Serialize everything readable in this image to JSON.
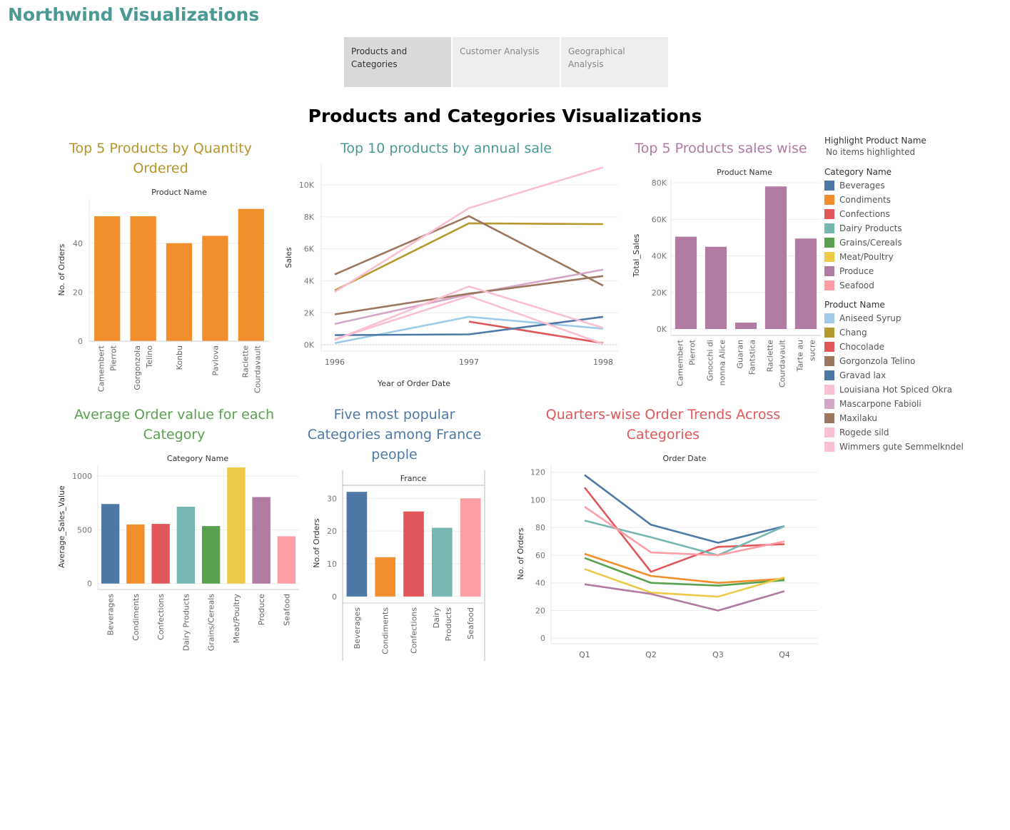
{
  "app_title": "Northwind Visualizations",
  "tabs": [
    {
      "label": "Products and Categories"
    },
    {
      "label": "Customer Analysis"
    },
    {
      "label": "Geographical Analysis"
    }
  ],
  "page_title": "Products and Categories Visualizations",
  "legend": {
    "highlight_title": "Highlight Product Name",
    "highlight_value": "No items highlighted",
    "category_title": "Category Name",
    "categories": [
      {
        "name": "Beverages",
        "color": "#4e79a7"
      },
      {
        "name": "Condiments",
        "color": "#f28e2b"
      },
      {
        "name": "Confections",
        "color": "#e15759"
      },
      {
        "name": "Dairy Products",
        "color": "#76b7b2"
      },
      {
        "name": "Grains/Cereals",
        "color": "#59a14f"
      },
      {
        "name": "Meat/Poultry",
        "color": "#edc948"
      },
      {
        "name": "Produce",
        "color": "#b07aa1"
      },
      {
        "name": "Seafood",
        "color": "#ff9da7"
      }
    ],
    "product_title": "Product Name",
    "products": [
      {
        "name": "Aniseed Syrup",
        "color": "#a0cbe8"
      },
      {
        "name": "Chang",
        "color": "#b6992d"
      },
      {
        "name": "Chocolade",
        "color": "#e15759"
      },
      {
        "name": "Gorgonzola Telino",
        "color": "#9d7660"
      },
      {
        "name": "Gravad lax",
        "color": "#4e79a7"
      },
      {
        "name": "Louisiana Hot Spiced Okra",
        "color": "#fabfd2"
      },
      {
        "name": "Mascarpone Fabioli",
        "color": "#d4a6c8"
      },
      {
        "name": "Maxilaku",
        "color": "#9d7660"
      },
      {
        "name": "Rogede sild",
        "color": "#fabfd2"
      },
      {
        "name": "Wimmers gute Semmelkndel",
        "color": "#fabfd2"
      }
    ]
  },
  "chart_data": [
    {
      "id": "qty",
      "type": "bar",
      "title": "Top 5 Products by Quantity Ordered",
      "title_color": "#b5952b",
      "header": "Product Name",
      "ylabel": "No. of Orders",
      "categories": [
        [
          "Camembert",
          "Pierrot"
        ],
        [
          "Gorgonzola",
          "Telino"
        ],
        [
          "Konbu"
        ],
        [
          "Pavlova"
        ],
        [
          "Raclette",
          "Courdavault"
        ]
      ],
      "values": [
        51,
        51,
        40,
        43,
        54
      ],
      "colors": [
        "#f28e2b",
        "#f28e2b",
        "#f28e2b",
        "#f28e2b",
        "#f28e2b"
      ],
      "ylim": [
        0,
        58
      ],
      "yticks": [
        {
          "v": 0,
          "l": "0"
        },
        {
          "v": 20,
          "l": "20"
        },
        {
          "v": 40,
          "l": "40"
        }
      ]
    },
    {
      "id": "annual",
      "type": "line",
      "title": "Top 10 products by annual sale",
      "title_color": "#4a9a94",
      "xlabel": "Year of Order Date",
      "ylabel": "Sales",
      "x": [
        "1996",
        "1997",
        "1998"
      ],
      "ylim": [
        -400,
        11300
      ],
      "yticks": [
        {
          "v": 0,
          "l": "0K"
        },
        {
          "v": 2000,
          "l": "2K"
        },
        {
          "v": 4000,
          "l": "4K"
        },
        {
          "v": 6000,
          "l": "6K"
        },
        {
          "v": 8000,
          "l": "8K"
        },
        {
          "v": 10000,
          "l": "10K"
        }
      ],
      "series": [
        {
          "name": "Aniseed Syrup",
          "color": "#a0cbe8",
          "values": [
            100,
            1750,
            1000
          ]
        },
        {
          "name": "Chang",
          "color": "#b6992d",
          "values": [
            3400,
            7600,
            7550
          ]
        },
        {
          "name": "Chocolade",
          "color": "#e15759",
          "values": [
            null,
            1450,
            100
          ]
        },
        {
          "name": "Gorgonzola Telino",
          "color": "#9d7660",
          "values": [
            4400,
            8050,
            3700
          ]
        },
        {
          "name": "Gravad lax",
          "color": "#4e79a7",
          "values": [
            600,
            650,
            1750
          ]
        },
        {
          "name": "Louisiana Hot Spiced Okra",
          "color": "#fabfd2",
          "values": [
            3300,
            8550,
            11100
          ]
        },
        {
          "name": "Mascarpone Fabioli",
          "color": "#d4a6c8",
          "values": [
            1300,
            3150,
            4700
          ]
        },
        {
          "name": "Maxilaku",
          "color": "#9d7660",
          "values": [
            1900,
            3200,
            4300
          ]
        },
        {
          "name": "Rogede sild",
          "color": "#fabfd2",
          "values": [
            300,
            3650,
            1050
          ]
        },
        {
          "name": "Wimmers gute Semmelkndel",
          "color": "#fabfd2",
          "values": [
            350,
            3050,
            50
          ]
        }
      ]
    },
    {
      "id": "sales",
      "type": "bar",
      "title": "Top 5 Products sales wise",
      "title_color": "#b07aa1",
      "header": "Product Name",
      "ylabel": "Total_Sales",
      "categories": [
        [
          "Camembert",
          "Pierrot"
        ],
        [
          "Gnocchi di",
          "nonna Alice"
        ],
        [
          "Guaran",
          "Fantstica"
        ],
        [
          "Raclette",
          "Courdavault"
        ],
        [
          "Tarte au",
          "sucre"
        ]
      ],
      "values": [
        50500,
        45000,
        3500,
        78000,
        49500
      ],
      "colors": [
        "#b07aa1",
        "#b07aa1",
        "#b07aa1",
        "#b07aa1",
        "#b07aa1"
      ],
      "ylim": [
        -3500,
        82000
      ],
      "yticks": [
        {
          "v": 0,
          "l": "0K"
        },
        {
          "v": 20000,
          "l": "20K"
        },
        {
          "v": 40000,
          "l": "40K"
        },
        {
          "v": 60000,
          "l": "60K"
        },
        {
          "v": 80000,
          "l": "80K"
        }
      ]
    },
    {
      "id": "avg",
      "type": "bar",
      "title": "Average Order value for each Category",
      "title_color": "#59a14f",
      "header": "Category Name",
      "ylabel": "Average_Sales_Value",
      "categories": [
        [
          "Beverages"
        ],
        [
          "Condiments"
        ],
        [
          "Confections"
        ],
        [
          "Dairy Products"
        ],
        [
          "Grains/Cereals"
        ],
        [
          "Meat/Poultry"
        ],
        [
          "Produce"
        ],
        [
          "Seafood"
        ]
      ],
      "values": [
        740,
        550,
        555,
        715,
        535,
        1080,
        805,
        440
      ],
      "colors": [
        "#4e79a7",
        "#f28e2b",
        "#e15759",
        "#76b7b2",
        "#59a14f",
        "#edc948",
        "#b07aa1",
        "#ff9da7"
      ],
      "ylim": [
        -55,
        1100
      ],
      "yticks": [
        {
          "v": 0,
          "l": "0"
        },
        {
          "v": 500,
          "l": "500"
        },
        {
          "v": 1000,
          "l": "1000"
        }
      ]
    },
    {
      "id": "france",
      "type": "bar",
      "title": "Five most popular Categories among France people",
      "title_color": "#4e79a7",
      "header": "France",
      "ylabel": "No.of Orders",
      "categories": [
        [
          "Beverages"
        ],
        [
          "Condiments"
        ],
        [
          "Confections"
        ],
        [
          "Dairy",
          "Products"
        ],
        [
          "Seafood"
        ]
      ],
      "values": [
        32,
        12,
        26,
        21,
        30
      ],
      "colors": [
        "#4e79a7",
        "#f28e2b",
        "#e15759",
        "#76b7b2",
        "#ff9da7"
      ],
      "ylim": [
        -2,
        34
      ],
      "yticks": [
        {
          "v": 0,
          "l": "0"
        },
        {
          "v": 10,
          "l": "10"
        },
        {
          "v": 20,
          "l": "20"
        },
        {
          "v": 30,
          "l": "30"
        }
      ]
    },
    {
      "id": "quarters",
      "type": "line",
      "title": "Quarters-wise Order Trends Across Categories",
      "title_color": "#e15759",
      "header": "Order Date",
      "ylabel": "No. of Orders",
      "x": [
        "Q1",
        "Q2",
        "Q3",
        "Q4"
      ],
      "ylim": [
        -4,
        125
      ],
      "yticks": [
        {
          "v": 0,
          "l": "0"
        },
        {
          "v": 20,
          "l": "20"
        },
        {
          "v": 40,
          "l": "40"
        },
        {
          "v": 60,
          "l": "60"
        },
        {
          "v": 80,
          "l": "80"
        },
        {
          "v": 100,
          "l": "100"
        },
        {
          "v": 120,
          "l": "120"
        }
      ],
      "series": [
        {
          "name": "Beverages",
          "color": "#4e79a7",
          "values": [
            118,
            82,
            69,
            81
          ]
        },
        {
          "name": "Condiments",
          "color": "#f28e2b",
          "values": [
            61,
            45,
            40,
            43
          ]
        },
        {
          "name": "Confections",
          "color": "#e15759",
          "values": [
            109,
            48,
            66,
            68
          ]
        },
        {
          "name": "Dairy Products",
          "color": "#76b7b2",
          "values": [
            85,
            73,
            60,
            81
          ]
        },
        {
          "name": "Grains/Cereals",
          "color": "#59a14f",
          "values": [
            58,
            40,
            38,
            42
          ]
        },
        {
          "name": "Meat/Poultry",
          "color": "#edc948",
          "values": [
            50,
            33,
            30,
            44
          ]
        },
        {
          "name": "Produce",
          "color": "#b07aa1",
          "values": [
            39,
            32,
            20,
            34
          ]
        },
        {
          "name": "Seafood",
          "color": "#ff9da7",
          "values": [
            95,
            62,
            60,
            70
          ]
        }
      ]
    }
  ]
}
